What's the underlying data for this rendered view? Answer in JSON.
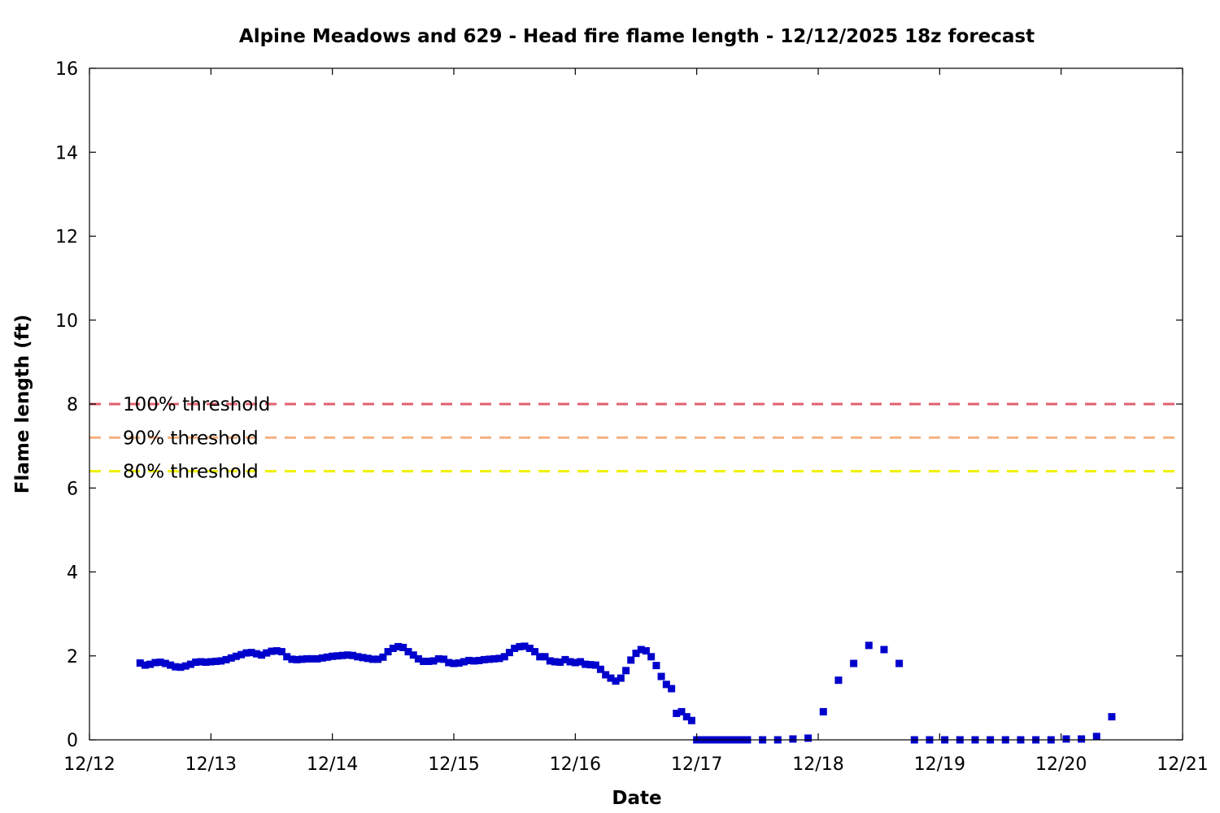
{
  "chart_data": {
    "type": "scatter",
    "title": "Alpine Meadows and 629 - Head fire flame length - 12/12/2025 18z forecast",
    "xlabel": "Date",
    "ylabel": "Flame length (ft)",
    "x_unit": "days after 12/12",
    "xlim": [
      0,
      9
    ],
    "ylim": [
      0,
      16
    ],
    "x_ticks": [
      {
        "value": 0,
        "label": "12/12"
      },
      {
        "value": 1,
        "label": "12/13"
      },
      {
        "value": 2,
        "label": "12/14"
      },
      {
        "value": 3,
        "label": "12/15"
      },
      {
        "value": 4,
        "label": "12/16"
      },
      {
        "value": 5,
        "label": "12/17"
      },
      {
        "value": 6,
        "label": "12/18"
      },
      {
        "value": 7,
        "label": "12/19"
      },
      {
        "value": 8,
        "label": "12/20"
      },
      {
        "value": 9,
        "label": "12/21"
      }
    ],
    "y_ticks": [
      {
        "value": 0,
        "label": "0"
      },
      {
        "value": 2,
        "label": "2"
      },
      {
        "value": 4,
        "label": "4"
      },
      {
        "value": 6,
        "label": "6"
      },
      {
        "value": 8,
        "label": "8"
      },
      {
        "value": 10,
        "label": "10"
      },
      {
        "value": 12,
        "label": "12"
      },
      {
        "value": 14,
        "label": "14"
      },
      {
        "value": 16,
        "label": "16"
      }
    ],
    "grid": false,
    "reference_lines": [
      {
        "label": "100% threshold",
        "y": 8.0,
        "color": "#e06070"
      },
      {
        "label": "90% threshold",
        "y": 7.2,
        "color": "#f5b080"
      },
      {
        "label": "80% threshold",
        "y": 6.4,
        "color": "#f0f000"
      }
    ],
    "series": [
      {
        "color": "#0000cc",
        "marker": "square",
        "points": [
          [
            0.417,
            1.83
          ],
          [
            0.458,
            1.78
          ],
          [
            0.5,
            1.8
          ],
          [
            0.542,
            1.84
          ],
          [
            0.583,
            1.85
          ],
          [
            0.625,
            1.82
          ],
          [
            0.667,
            1.78
          ],
          [
            0.708,
            1.74
          ],
          [
            0.75,
            1.73
          ],
          [
            0.792,
            1.76
          ],
          [
            0.833,
            1.8
          ],
          [
            0.875,
            1.85
          ],
          [
            0.917,
            1.86
          ],
          [
            0.958,
            1.85
          ],
          [
            1.0,
            1.86
          ],
          [
            1.042,
            1.87
          ],
          [
            1.083,
            1.88
          ],
          [
            1.125,
            1.91
          ],
          [
            1.167,
            1.95
          ],
          [
            1.208,
            1.99
          ],
          [
            1.25,
            2.03
          ],
          [
            1.292,
            2.07
          ],
          [
            1.333,
            2.08
          ],
          [
            1.375,
            2.05
          ],
          [
            1.417,
            2.02
          ],
          [
            1.458,
            2.07
          ],
          [
            1.5,
            2.11
          ],
          [
            1.542,
            2.12
          ],
          [
            1.583,
            2.1
          ],
          [
            1.625,
            1.98
          ],
          [
            1.667,
            1.92
          ],
          [
            1.708,
            1.91
          ],
          [
            1.75,
            1.92
          ],
          [
            1.792,
            1.93
          ],
          [
            1.833,
            1.93
          ],
          [
            1.875,
            1.93
          ],
          [
            1.917,
            1.95
          ],
          [
            1.958,
            1.97
          ],
          [
            2.0,
            1.99
          ],
          [
            2.042,
            2.0
          ],
          [
            2.083,
            2.01
          ],
          [
            2.125,
            2.02
          ],
          [
            2.167,
            2.01
          ],
          [
            2.208,
            1.98
          ],
          [
            2.25,
            1.96
          ],
          [
            2.292,
            1.94
          ],
          [
            2.333,
            1.92
          ],
          [
            2.375,
            1.92
          ],
          [
            2.417,
            1.97
          ],
          [
            2.458,
            2.1
          ],
          [
            2.5,
            2.18
          ],
          [
            2.542,
            2.22
          ],
          [
            2.583,
            2.2
          ],
          [
            2.625,
            2.1
          ],
          [
            2.667,
            2.02
          ],
          [
            2.708,
            1.93
          ],
          [
            2.75,
            1.87
          ],
          [
            2.792,
            1.87
          ],
          [
            2.833,
            1.88
          ],
          [
            2.875,
            1.93
          ],
          [
            2.917,
            1.92
          ],
          [
            2.958,
            1.84
          ],
          [
            3.0,
            1.82
          ],
          [
            3.042,
            1.83
          ],
          [
            3.083,
            1.86
          ],
          [
            3.125,
            1.89
          ],
          [
            3.167,
            1.88
          ],
          [
            3.208,
            1.89
          ],
          [
            3.25,
            1.91
          ],
          [
            3.292,
            1.92
          ],
          [
            3.333,
            1.93
          ],
          [
            3.375,
            1.94
          ],
          [
            3.417,
            1.98
          ],
          [
            3.458,
            2.08
          ],
          [
            3.5,
            2.18
          ],
          [
            3.542,
            2.22
          ],
          [
            3.583,
            2.23
          ],
          [
            3.625,
            2.18
          ],
          [
            3.667,
            2.1
          ],
          [
            3.708,
            1.98
          ],
          [
            3.75,
            1.98
          ],
          [
            3.792,
            1.88
          ],
          [
            3.833,
            1.86
          ],
          [
            3.875,
            1.85
          ],
          [
            3.917,
            1.91
          ],
          [
            3.958,
            1.86
          ],
          [
            4.0,
            1.84
          ],
          [
            4.042,
            1.86
          ],
          [
            4.083,
            1.8
          ],
          [
            4.125,
            1.79
          ],
          [
            4.167,
            1.78
          ],
          [
            4.208,
            1.68
          ],
          [
            4.25,
            1.55
          ],
          [
            4.292,
            1.47
          ],
          [
            4.333,
            1.4
          ],
          [
            4.375,
            1.47
          ],
          [
            4.417,
            1.65
          ],
          [
            4.458,
            1.9
          ],
          [
            4.5,
            2.06
          ],
          [
            4.542,
            2.15
          ],
          [
            4.583,
            2.12
          ],
          [
            4.625,
            1.98
          ],
          [
            4.667,
            1.77
          ],
          [
            4.708,
            1.51
          ],
          [
            4.75,
            1.32
          ],
          [
            4.792,
            1.22
          ],
          [
            4.833,
            0.63
          ],
          [
            4.875,
            0.67
          ],
          [
            4.917,
            0.55
          ],
          [
            4.958,
            0.46
          ],
          [
            5.0,
            0
          ],
          [
            5.042,
            0
          ],
          [
            5.083,
            0
          ],
          [
            5.125,
            0
          ],
          [
            5.167,
            0
          ],
          [
            5.208,
            0
          ],
          [
            5.25,
            0
          ],
          [
            5.292,
            0
          ],
          [
            5.333,
            0
          ],
          [
            5.375,
            0
          ],
          [
            5.417,
            0
          ],
          [
            5.542,
            0
          ],
          [
            5.667,
            0
          ],
          [
            5.792,
            0.02
          ],
          [
            5.917,
            0.04
          ],
          [
            6.042,
            0.67
          ],
          [
            6.167,
            1.42
          ],
          [
            6.292,
            1.82
          ],
          [
            6.417,
            2.25
          ],
          [
            6.542,
            2.15
          ],
          [
            6.667,
            1.82
          ],
          [
            6.792,
            0
          ],
          [
            6.917,
            0
          ],
          [
            7.042,
            0
          ],
          [
            7.167,
            0
          ],
          [
            7.292,
            0
          ],
          [
            7.417,
            0
          ],
          [
            7.542,
            0
          ],
          [
            7.667,
            0
          ],
          [
            7.792,
            0
          ],
          [
            7.917,
            0
          ],
          [
            8.042,
            0.02
          ],
          [
            8.167,
            0.02
          ],
          [
            8.292,
            0.08
          ],
          [
            8.417,
            0.55
          ]
        ]
      }
    ]
  }
}
